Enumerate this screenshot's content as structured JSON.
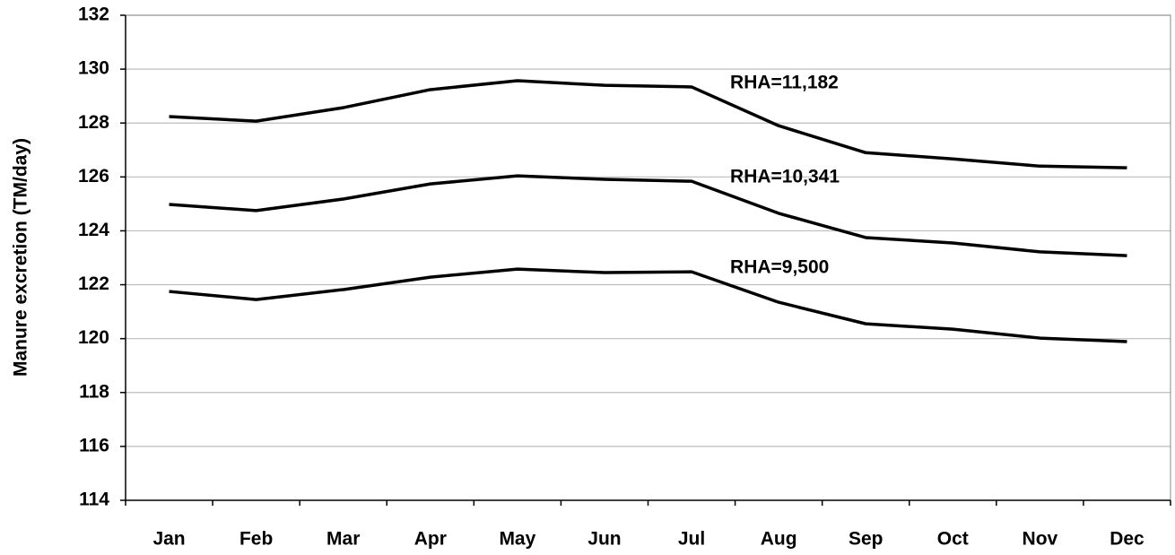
{
  "chart_data": {
    "type": "line",
    "y_label": "Manure excretion (TM/day)",
    "categories": [
      "Jan",
      "Feb",
      "Mar",
      "Apr",
      "May",
      "Jun",
      "Jul",
      "Aug",
      "Sep",
      "Oct",
      "Nov",
      "Dec"
    ],
    "series": [
      {
        "name": "RHA=11,182",
        "color": "#000000",
        "values": [
          128.24,
          128.07,
          128.57,
          129.24,
          129.57,
          129.4,
          129.34,
          127.9,
          126.9,
          126.67,
          126.4,
          126.34
        ]
      },
      {
        "name": "RHA=10,341",
        "color": "#000000",
        "values": [
          124.98,
          124.75,
          125.18,
          125.74,
          126.04,
          125.91,
          125.84,
          124.65,
          123.75,
          123.55,
          123.22,
          123.08
        ]
      },
      {
        "name": "RHA=9,500",
        "color": "#000000",
        "values": [
          121.75,
          121.45,
          121.82,
          122.28,
          122.58,
          122.45,
          122.48,
          121.35,
          120.55,
          120.35,
          120.02,
          119.89
        ]
      }
    ],
    "ylim": [
      114,
      132
    ],
    "yticks": [
      114,
      116,
      118,
      120,
      122,
      124,
      126,
      128,
      130,
      132
    ],
    "grid": true
  }
}
